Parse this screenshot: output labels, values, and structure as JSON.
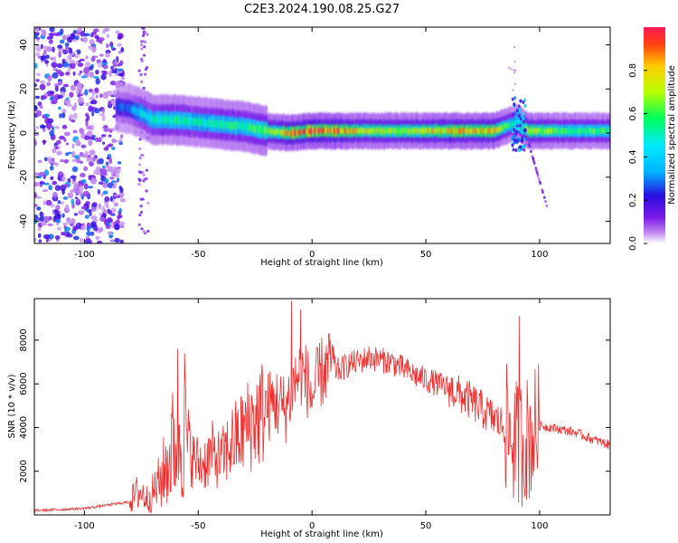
{
  "title": "C2E3.2024.190.08.25.G27",
  "colors": {
    "snr_line": "#ee2e2e",
    "colormap": [
      "#ffffff",
      "#c18af0",
      "#7a18e8",
      "#2a0fe0",
      "#00b4ff",
      "#00e8ff",
      "#00ff5a",
      "#b8ff00",
      "#ffcc00",
      "#ff1a1a"
    ]
  },
  "chart_data": [
    {
      "type": "heatmap",
      "title": "C2E3.2024.190.08.25.G27",
      "xlabel": "Height of straight line (km)",
      "ylabel": "Frequency (Hz)",
      "xlim": [
        -122,
        131
      ],
      "ylim": [
        -50,
        48
      ],
      "xticks": [
        -100,
        -50,
        0,
        50,
        100
      ],
      "xtick_labels": [
        "-100",
        "-50",
        "0",
        "50",
        "100"
      ],
      "yticks": [
        -40,
        -20,
        0,
        20,
        40
      ],
      "ytick_labels": [
        "-40",
        "-20",
        "0",
        "20",
        "40"
      ],
      "colorbar": {
        "label": "Normalized spectral amplitude",
        "range": [
          0,
          1
        ],
        "ticks": [
          0.0,
          0.2,
          0.4,
          0.6,
          0.8
        ],
        "tick_labels": [
          "0.0",
          "0.2",
          "0.4",
          "0.6",
          "0.8"
        ]
      },
      "noise_region_height_km": [
        -122,
        -83
      ],
      "spectral_ridge": [
        {
          "h": -86,
          "f": 12,
          "amp": 0.25
        },
        {
          "h": -80,
          "f": 11,
          "amp": 0.3
        },
        {
          "h": -75,
          "f": 9,
          "amp": 0.45
        },
        {
          "h": -70,
          "f": 6,
          "amp": 0.5
        },
        {
          "h": -60,
          "f": 6,
          "amp": 0.55
        },
        {
          "h": -50,
          "f": 5,
          "amp": 0.5
        },
        {
          "h": -40,
          "f": 4,
          "amp": 0.55
        },
        {
          "h": -30,
          "f": 3,
          "amp": 0.55
        },
        {
          "h": -20,
          "f": 1,
          "amp": 0.65
        },
        {
          "h": -10,
          "f": 0,
          "amp": 0.85
        },
        {
          "h": 0,
          "f": 1,
          "amp": 0.9
        },
        {
          "h": 10,
          "f": 1,
          "amp": 0.9
        },
        {
          "h": 20,
          "f": 1,
          "amp": 0.75
        },
        {
          "h": 40,
          "f": 1,
          "amp": 0.7
        },
        {
          "h": 60,
          "f": 1,
          "amp": 0.8
        },
        {
          "h": 80,
          "f": 1,
          "amp": 0.8
        },
        {
          "h": 90,
          "f": 5,
          "amp": 0.45
        },
        {
          "h": 95,
          "f": 1,
          "amp": 0.75
        },
        {
          "h": 110,
          "f": 1,
          "amp": 0.6
        },
        {
          "h": 131,
          "f": 1,
          "amp": 0.6
        }
      ],
      "grid": false
    },
    {
      "type": "line",
      "xlabel": "Height of straight line (km)",
      "ylabel": "SNR (10 * v/v)",
      "xlim": [
        -122,
        131
      ],
      "ylim": [
        0,
        9900
      ],
      "xticks": [
        -100,
        -50,
        0,
        50,
        100
      ],
      "xtick_labels": [
        "-100",
        "-50",
        "0",
        "50",
        "100"
      ],
      "yticks": [
        2000,
        4000,
        6000,
        8000
      ],
      "ytick_labels": [
        "2000",
        "4000",
        "6000",
        "8000"
      ],
      "series": [
        {
          "color": "#ee2e2e",
          "x": [
            -122,
            -110,
            -100,
            -90,
            -80,
            -76,
            -72,
            -68,
            -64,
            -60,
            -56,
            -52,
            -48,
            -44,
            -40,
            -36,
            -32,
            -28,
            -24,
            -20,
            -16,
            -12,
            -8,
            -5,
            -2,
            0,
            4,
            8,
            12,
            16,
            20,
            25,
            30,
            35,
            40,
            45,
            50,
            55,
            60,
            65,
            70,
            75,
            80,
            85,
            90,
            93,
            96,
            100,
            105,
            110,
            115,
            120,
            125,
            131
          ],
          "values": [
            200,
            250,
            300,
            450,
            600,
            1100,
            700,
            1300,
            2200,
            3500,
            3800,
            2500,
            2300,
            2800,
            2500,
            3200,
            3600,
            4100,
            4500,
            4900,
            5200,
            4800,
            6000,
            6600,
            6100,
            5400,
            6500,
            6800,
            6600,
            6900,
            7000,
            7200,
            7100,
            7000,
            6700,
            6400,
            6200,
            6000,
            5800,
            5500,
            5200,
            4800,
            4400,
            4000,
            3200,
            3400,
            3600,
            4100,
            4000,
            3900,
            3800,
            3600,
            3400,
            3200
          ],
          "spike_peaks": [
            {
              "x": -59,
              "y": 7600
            },
            {
              "x": -56,
              "y": 7400
            },
            {
              "x": -9,
              "y": 9800
            },
            {
              "x": -5,
              "y": 9400
            },
            {
              "x": 8,
              "y": 8000
            },
            {
              "x": 91,
              "y": 9100
            }
          ]
        }
      ],
      "grid": false
    }
  ]
}
